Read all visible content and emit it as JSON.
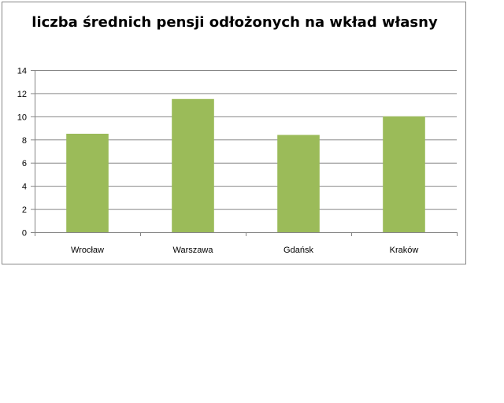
{
  "chart_data": {
    "type": "bar",
    "title": "liczba średnich pensji odłożonych na wkład własny",
    "categories": [
      "Wrocław",
      "Warszawa",
      "Gdańsk",
      "Kraków"
    ],
    "values": [
      8.5,
      11.5,
      8.4,
      10.0
    ],
    "yticks": [
      "0",
      "2",
      "4",
      "6",
      "8",
      "10",
      "12",
      "14"
    ],
    "ylim": [
      0,
      14
    ],
    "xlabel": "",
    "ylabel": "",
    "grid": true,
    "legend": "none",
    "bar_color": "#9BBB59"
  }
}
